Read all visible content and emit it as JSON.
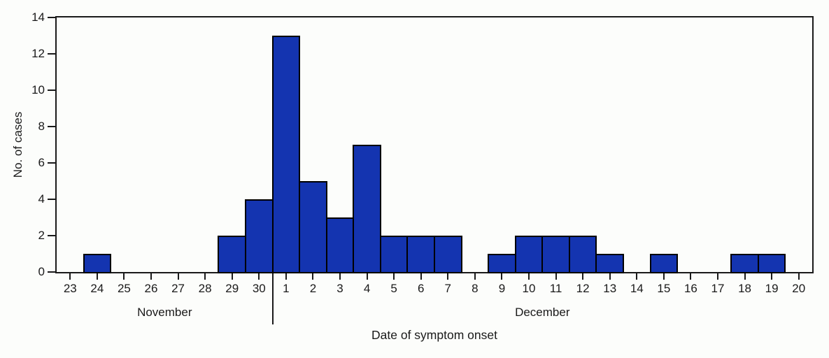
{
  "chart_data": {
    "type": "bar",
    "title": "",
    "xlabel": "Date of symptom onset",
    "ylabel": "No. of cases",
    "categories": [
      "23",
      "24",
      "25",
      "26",
      "27",
      "28",
      "29",
      "30",
      "1",
      "2",
      "3",
      "4",
      "5",
      "6",
      "7",
      "8",
      "9",
      "10",
      "11",
      "12",
      "13",
      "14",
      "15",
      "16",
      "17",
      "18",
      "19",
      "20"
    ],
    "values": [
      0,
      1,
      0,
      0,
      0,
      0,
      2,
      4,
      13,
      5,
      3,
      7,
      2,
      2,
      2,
      0,
      1,
      2,
      2,
      2,
      1,
      0,
      1,
      0,
      0,
      1,
      1,
      0
    ],
    "months": [
      {
        "label": "November",
        "first_slot": 0,
        "last_slot": 7
      },
      {
        "label": "December",
        "first_slot": 8,
        "last_slot": 27
      }
    ],
    "divider_before_slot": 8,
    "ylim": [
      0,
      14
    ],
    "yticks": [
      0,
      2,
      4,
      6,
      8,
      10,
      12,
      14
    ],
    "grid": "off",
    "legend": "none",
    "colors": {
      "bar_fill": "#1434b0",
      "bar_border": "#000000",
      "axis": "#1a1a1a",
      "text": "#1a1a1a",
      "background": "#fcfdfb"
    }
  }
}
